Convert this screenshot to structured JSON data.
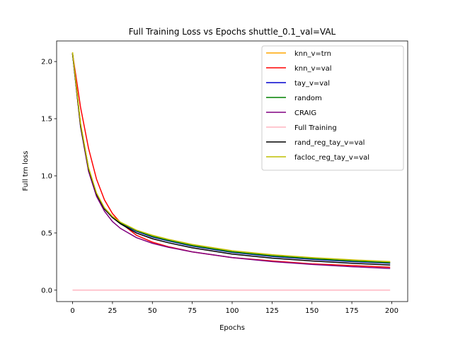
{
  "chart_data": {
    "type": "line",
    "title": "Full Training Loss vs Epochs shuttle_0.1_val=VAL",
    "xlabel": "Epochs",
    "ylabel": "Full trn loss",
    "xlim": [
      -10,
      210
    ],
    "ylim": [
      -0.1,
      2.18
    ],
    "xticks": [
      0,
      25,
      50,
      75,
      100,
      125,
      150,
      175,
      200
    ],
    "yticks": [
      0.0,
      0.5,
      1.0,
      1.5,
      2.0
    ],
    "xtick_labels": [
      "0",
      "25",
      "50",
      "75",
      "100",
      "125",
      "150",
      "175",
      "200"
    ],
    "ytick_labels": [
      "0.0",
      "0.5",
      "1.0",
      "1.5",
      "2.0"
    ],
    "legend_position": "upper right",
    "grid": false,
    "series": [
      {
        "name": "knn_v=trn",
        "color": "#ffa500",
        "x": [
          0,
          5,
          10,
          15,
          20,
          25,
          30,
          40,
          50,
          60,
          75,
          100,
          125,
          150,
          175,
          199
        ],
        "y": [
          2.08,
          1.45,
          1.07,
          0.84,
          0.71,
          0.64,
          0.59,
          0.52,
          0.475,
          0.44,
          0.395,
          0.34,
          0.305,
          0.28,
          0.26,
          0.245
        ]
      },
      {
        "name": "knn_v=val",
        "color": "#ff0000",
        "x": [
          0,
          5,
          10,
          15,
          20,
          25,
          30,
          40,
          50,
          60,
          75,
          100,
          125,
          150,
          175,
          199
        ],
        "y": [
          2.07,
          1.6,
          1.24,
          0.97,
          0.79,
          0.67,
          0.59,
          0.48,
          0.42,
          0.38,
          0.335,
          0.285,
          0.255,
          0.23,
          0.215,
          0.2
        ]
      },
      {
        "name": "tay_v=val",
        "color": "#0000cd",
        "x": [
          0,
          5,
          10,
          15,
          20,
          25,
          30,
          40,
          50,
          60,
          75,
          100,
          125,
          150,
          175,
          199
        ],
        "y": [
          2.07,
          1.44,
          1.06,
          0.84,
          0.71,
          0.635,
          0.585,
          0.515,
          0.465,
          0.43,
          0.385,
          0.33,
          0.295,
          0.27,
          0.25,
          0.235
        ]
      },
      {
        "name": "random",
        "color": "#008000",
        "x": [
          0,
          5,
          10,
          15,
          20,
          25,
          30,
          40,
          50,
          60,
          75,
          100,
          125,
          150,
          175,
          199
        ],
        "y": [
          2.07,
          1.45,
          1.07,
          0.84,
          0.71,
          0.64,
          0.59,
          0.52,
          0.47,
          0.435,
          0.39,
          0.335,
          0.3,
          0.275,
          0.255,
          0.24
        ]
      },
      {
        "name": "CRAIG",
        "color": "#800080",
        "x": [
          0,
          5,
          10,
          15,
          20,
          25,
          30,
          40,
          50,
          60,
          75,
          100,
          125,
          150,
          175,
          199
        ],
        "y": [
          2.07,
          1.43,
          1.04,
          0.82,
          0.69,
          0.6,
          0.54,
          0.46,
          0.41,
          0.375,
          0.335,
          0.285,
          0.25,
          0.225,
          0.205,
          0.19
        ]
      },
      {
        "name": "Full Training",
        "color": "#ffb6c1",
        "x": [
          0,
          50,
          100,
          150,
          199
        ],
        "y": [
          0.0,
          0.0,
          0.0,
          0.0,
          0.0
        ]
      },
      {
        "name": "rand_reg_tay_v=val",
        "color": "#000000",
        "x": [
          0,
          5,
          10,
          15,
          20,
          25,
          30,
          40,
          50,
          60,
          75,
          100,
          125,
          150,
          175,
          199
        ],
        "y": [
          2.07,
          1.44,
          1.06,
          0.84,
          0.71,
          0.635,
          0.58,
          0.5,
          0.45,
          0.415,
          0.37,
          0.315,
          0.28,
          0.255,
          0.235,
          0.22
        ]
      },
      {
        "name": "facloc_reg_tay_v=val",
        "color": "#bfbf00",
        "x": [
          0,
          5,
          10,
          15,
          20,
          25,
          30,
          40,
          50,
          60,
          75,
          100,
          125,
          150,
          175,
          199
        ],
        "y": [
          2.08,
          1.46,
          1.07,
          0.85,
          0.72,
          0.645,
          0.595,
          0.525,
          0.48,
          0.445,
          0.4,
          0.345,
          0.31,
          0.285,
          0.265,
          0.25
        ]
      }
    ]
  }
}
